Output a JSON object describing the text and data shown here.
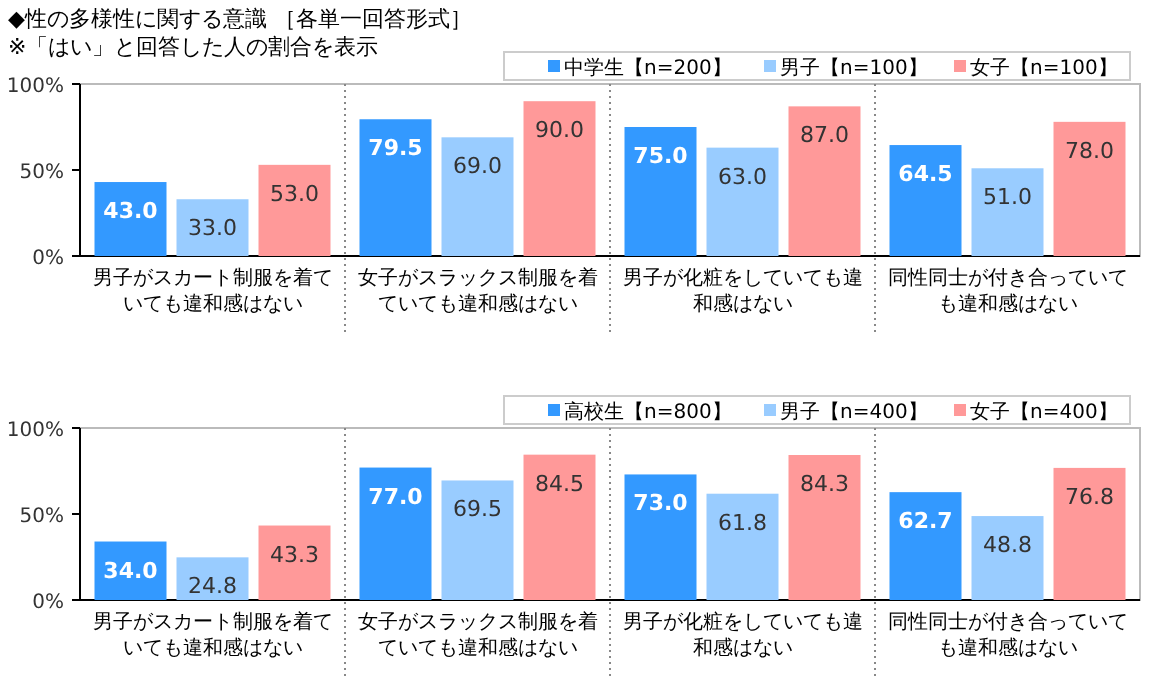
{
  "chart_data": [
    {
      "type": "bar",
      "title": "◆性の多様性に関する意識 ［各単一回答形式］",
      "subtitle": "※「はい」と回答した人の割合を表示",
      "categories": [
        "男子がスカート制服を着ていても違和感はない",
        "女子がスラックス制服を着ていても違和感はない",
        "男子が化粧をしていても違和感はない",
        "同性同士が付き合っていても違和感はない"
      ],
      "series": [
        {
          "name": "中学生【n=200】",
          "color": "#3399ff",
          "values": [
            43.0,
            79.5,
            75.0,
            64.5
          ],
          "value_labels": [
            "43.0",
            "79.5",
            "75.0",
            "64.5"
          ]
        },
        {
          "name": "男子【n=100】",
          "color": "#99ccff",
          "values": [
            33.0,
            69.0,
            63.0,
            51.0
          ],
          "value_labels": [
            "33.0",
            "69.0",
            "63.0",
            "51.0"
          ]
        },
        {
          "name": "女子【n=100】",
          "color": "#ff9999",
          "values": [
            53.0,
            90.0,
            87.0,
            78.0
          ],
          "value_labels": [
            "53.0",
            "90.0",
            "87.0",
            "78.0"
          ]
        }
      ],
      "ylim": [
        0,
        100
      ],
      "yticks": [
        {
          "value": 0,
          "label": "0%"
        },
        {
          "value": 50,
          "label": "50%"
        },
        {
          "value": 100,
          "label": "100%"
        }
      ],
      "legend": "top right"
    },
    {
      "type": "bar",
      "categories": [
        "男子がスカート制服を着ていても違和感はない",
        "女子がスラックス制服を着ていても違和感はない",
        "男子が化粧をしていても違和感はない",
        "同性同士が付き合っていても違和感はない"
      ],
      "series": [
        {
          "name": "高校生【n=800】",
          "color": "#3399ff",
          "values": [
            34.0,
            77.0,
            73.0,
            62.7
          ],
          "value_labels": [
            "34.0",
            "77.0",
            "73.0",
            "62.7"
          ]
        },
        {
          "name": "男子【n=400】",
          "color": "#99ccff",
          "values": [
            24.8,
            69.5,
            61.8,
            48.8
          ],
          "value_labels": [
            "24.8",
            "69.5",
            "61.8",
            "48.8"
          ]
        },
        {
          "name": "女子【n=400】",
          "color": "#ff9999",
          "values": [
            43.3,
            84.5,
            84.3,
            76.8
          ],
          "value_labels": [
            "43.3",
            "84.5",
            "84.3",
            "76.8"
          ]
        }
      ],
      "ylim": [
        0,
        100
      ],
      "yticks": [
        {
          "value": 0,
          "label": "0%"
        },
        {
          "value": 50,
          "label": "50%"
        },
        {
          "value": 100,
          "label": "100%"
        }
      ],
      "legend": "top right"
    }
  ]
}
